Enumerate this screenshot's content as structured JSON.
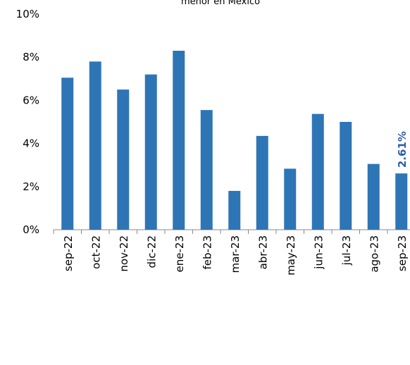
{
  "chart_data": {
    "type": "bar",
    "title": "menor en México",
    "categories": [
      "sep-22",
      "oct-22",
      "nov-22",
      "dic-22",
      "ene-23",
      "feb-23",
      "mar-23",
      "abr-23",
      "may-23",
      "jun-23",
      "jul-23",
      "ago-23",
      "sep-23"
    ],
    "values": [
      7.05,
      7.8,
      6.5,
      7.2,
      8.3,
      5.55,
      1.8,
      4.35,
      2.83,
      5.37,
      5.0,
      3.05,
      2.61
    ],
    "value_labels": [
      null,
      null,
      null,
      null,
      null,
      null,
      null,
      null,
      null,
      null,
      null,
      null,
      "2.61%"
    ],
    "color": "#2e75b6",
    "ylim": [
      0,
      10
    ],
    "yticks": [
      {
        "value": 0,
        "label": "0%"
      },
      {
        "value": 2,
        "label": "2%"
      },
      {
        "value": 4,
        "label": "4%"
      },
      {
        "value": 6,
        "label": "6%"
      },
      {
        "value": 8,
        "label": "8%"
      },
      {
        "value": 10,
        "label": "10%"
      }
    ],
    "grid": false
  }
}
